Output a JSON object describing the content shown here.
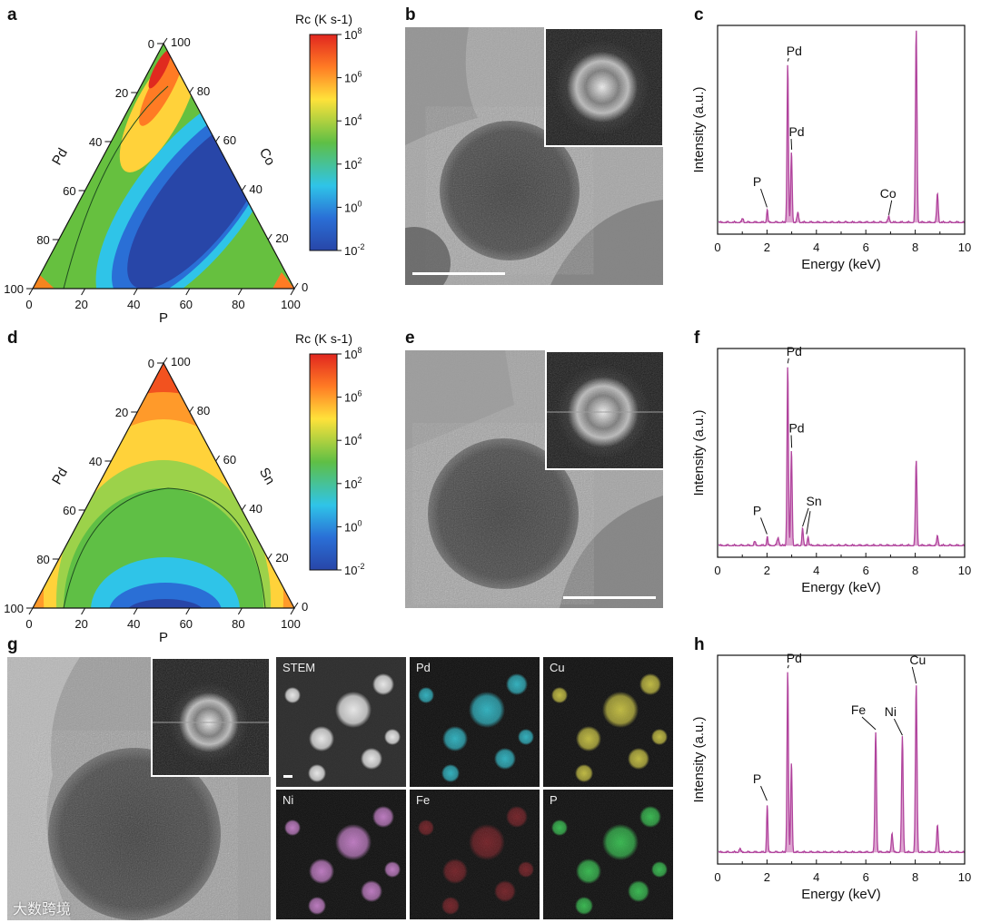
{
  "colors": {
    "spectrum": "#b1449d",
    "spectrum_fill": "#d795c8"
  },
  "panels": {
    "a": {
      "label": "a",
      "chart_data": {
        "type": "ternary-heatmap",
        "left_axis": "Pd",
        "right_axis": "Co",
        "bottom_axis": "P",
        "ticks": [
          "0",
          "20",
          "40",
          "60",
          "80",
          "100"
        ],
        "colorbar_title": "Rc (K s-1)",
        "colorbar_ticks": [
          "10^8",
          "10^6",
          "10^4",
          "10^2",
          "10^0",
          "10^-2"
        ]
      }
    },
    "d": {
      "label": "d",
      "chart_data": {
        "type": "ternary-heatmap",
        "left_axis": "Pd",
        "right_axis": "Sn",
        "bottom_axis": "P",
        "ticks": [
          "0",
          "20",
          "40",
          "60",
          "80",
          "100"
        ],
        "colorbar_title": "Rc (K s-1)",
        "colorbar_ticks": [
          "10^8",
          "10^6",
          "10^4",
          "10^2",
          "10^0",
          "10^-2"
        ]
      }
    },
    "b": {
      "label": "b"
    },
    "e": {
      "label": "e"
    },
    "g": {
      "label": "g"
    },
    "c": {
      "label": "c",
      "chart_data": {
        "type": "line",
        "xlabel": "Energy (keV)",
        "ylabel": "Intensity (a.u.)",
        "xlim": [
          0,
          10
        ],
        "xticks": [
          0,
          2,
          4,
          6,
          8,
          10
        ],
        "peaks": [
          {
            "x": 1.02,
            "h": 0.02,
            "w": 0.05
          },
          {
            "x": 2.01,
            "h": 0.07,
            "w": 0.035
          },
          {
            "x": 2.84,
            "h": 0.83,
            "w": 0.04
          },
          {
            "x": 2.99,
            "h": 0.37,
            "w": 0.04
          },
          {
            "x": 3.25,
            "h": 0.05,
            "w": 0.05
          },
          {
            "x": 6.93,
            "h": 0.03,
            "w": 0.05
          },
          {
            "x": 8.04,
            "h": 1.0,
            "w": 0.045
          },
          {
            "x": 8.9,
            "h": 0.15,
            "w": 0.045
          }
        ],
        "annotations": [
          {
            "text": "P",
            "x": 1.6,
            "y": 0.19,
            "px": 2.0,
            "py": 0.08
          },
          {
            "text": "Pd",
            "x": 3.1,
            "y": 0.87,
            "px": 2.84,
            "py": 0.84
          },
          {
            "text": "Pd",
            "x": 3.2,
            "y": 0.45,
            "px": 3.0,
            "py": 0.38
          },
          {
            "text": "Co",
            "x": 6.9,
            "y": 0.13,
            "px": 6.93,
            "py": 0.04
          }
        ]
      }
    },
    "f": {
      "label": "f",
      "chart_data": {
        "type": "line",
        "xlabel": "Energy (keV)",
        "ylabel": "Intensity (a.u.)",
        "xlim": [
          0,
          10
        ],
        "xticks": [
          0,
          2,
          4,
          6,
          8,
          10
        ],
        "peaks": [
          {
            "x": 1.5,
            "h": 0.02,
            "w": 0.05
          },
          {
            "x": 2.01,
            "h": 0.05,
            "w": 0.035
          },
          {
            "x": 2.45,
            "h": 0.04,
            "w": 0.06
          },
          {
            "x": 2.84,
            "h": 0.94,
            "w": 0.04
          },
          {
            "x": 2.99,
            "h": 0.5,
            "w": 0.04
          },
          {
            "x": 3.44,
            "h": 0.09,
            "w": 0.04
          },
          {
            "x": 3.66,
            "h": 0.05,
            "w": 0.04
          },
          {
            "x": 8.04,
            "h": 0.44,
            "w": 0.045
          },
          {
            "x": 8.9,
            "h": 0.05,
            "w": 0.045
          }
        ],
        "annotations": [
          {
            "text": "P",
            "x": 1.6,
            "y": 0.16,
            "px": 2.0,
            "py": 0.06
          },
          {
            "text": "Pd",
            "x": 3.1,
            "y": 0.99,
            "px": 2.84,
            "py": 0.95
          },
          {
            "text": "Pd",
            "x": 3.2,
            "y": 0.59,
            "px": 3.0,
            "py": 0.51
          },
          {
            "text": "Sn",
            "x": 3.9,
            "y": 0.21,
            "px": 3.44,
            "py": 0.1
          }
        ]
      }
    },
    "h": {
      "label": "h",
      "chart_data": {
        "type": "line",
        "xlabel": "Energy (keV)",
        "ylabel": "Intensity (a.u.)",
        "xlim": [
          0,
          10
        ],
        "xticks": [
          0,
          2,
          4,
          6,
          8,
          10
        ],
        "peaks": [
          {
            "x": 0.9,
            "h": 0.02,
            "w": 0.05
          },
          {
            "x": 2.01,
            "h": 0.25,
            "w": 0.035
          },
          {
            "x": 2.84,
            "h": 0.95,
            "w": 0.04
          },
          {
            "x": 2.99,
            "h": 0.47,
            "w": 0.04
          },
          {
            "x": 6.4,
            "h": 0.63,
            "w": 0.045
          },
          {
            "x": 7.06,
            "h": 0.1,
            "w": 0.045
          },
          {
            "x": 7.48,
            "h": 0.6,
            "w": 0.045
          },
          {
            "x": 8.04,
            "h": 0.87,
            "w": 0.045
          },
          {
            "x": 8.9,
            "h": 0.14,
            "w": 0.045
          }
        ],
        "annotations": [
          {
            "text": "P",
            "x": 1.6,
            "y": 0.36,
            "px": 2.0,
            "py": 0.27
          },
          {
            "text": "Pd",
            "x": 3.1,
            "y": 0.99,
            "px": 2.84,
            "py": 0.96
          },
          {
            "text": "Fe",
            "x": 5.7,
            "y": 0.72,
            "px": 6.4,
            "py": 0.64
          },
          {
            "text": "Ni",
            "x": 7.0,
            "y": 0.71,
            "px": 7.48,
            "py": 0.61
          },
          {
            "text": "Cu",
            "x": 8.1,
            "y": 0.98,
            "px": 8.04,
            "py": 0.88
          }
        ]
      }
    },
    "maps": [
      {
        "key": "stem",
        "label": "STEM",
        "color": "#f2f2f2"
      },
      {
        "key": "pd",
        "label": "Pd",
        "color": "#27b7c6"
      },
      {
        "key": "cu",
        "label": "Cu",
        "color": "#c9c23a"
      },
      {
        "key": "ni",
        "label": "Ni",
        "color": "#c57ac9"
      },
      {
        "key": "fe",
        "label": "Fe",
        "color": "#c0242f"
      },
      {
        "key": "p",
        "label": "P",
        "color": "#2fbf4a"
      }
    ]
  },
  "watermark": "大数跨境"
}
